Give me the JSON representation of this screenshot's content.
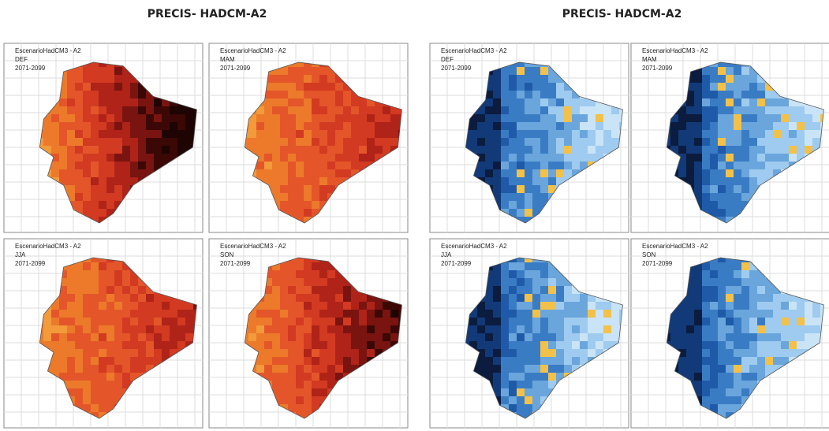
{
  "titles": [
    "PRECIS- HADCM-A2",
    "PRECIS- HADCM-A2"
  ],
  "panels": [
    {
      "scenario": "EscenarioHadCM3 - A2",
      "season": "DEF",
      "period": "2071-2099"
    },
    {
      "scenario": "EscenarioHadCM3 - A2",
      "season": "MAM",
      "period": "2071-2099"
    },
    {
      "scenario": "EscenarioHadCM3 - A2",
      "season": "JJA",
      "period": "2071-2099"
    },
    {
      "scenario": "EscenarioHadCM3 - A2",
      "season": "SON",
      "period": "2071-2099"
    },
    {
      "scenario": "EscenarioHadCM3 - A2",
      "season": "DEF",
      "period": "2071-2099"
    },
    {
      "scenario": "EscenarioHadCM3 - A2",
      "season": "MAM",
      "period": "2071-2099"
    },
    {
      "scenario": "EscenarioHadCM3 - A2",
      "season": "JJA",
      "period": "2071-2099"
    },
    {
      "scenario": "EscenarioHadCM3 - A2",
      "season": "SON",
      "period": "2071-2099"
    }
  ]
}
